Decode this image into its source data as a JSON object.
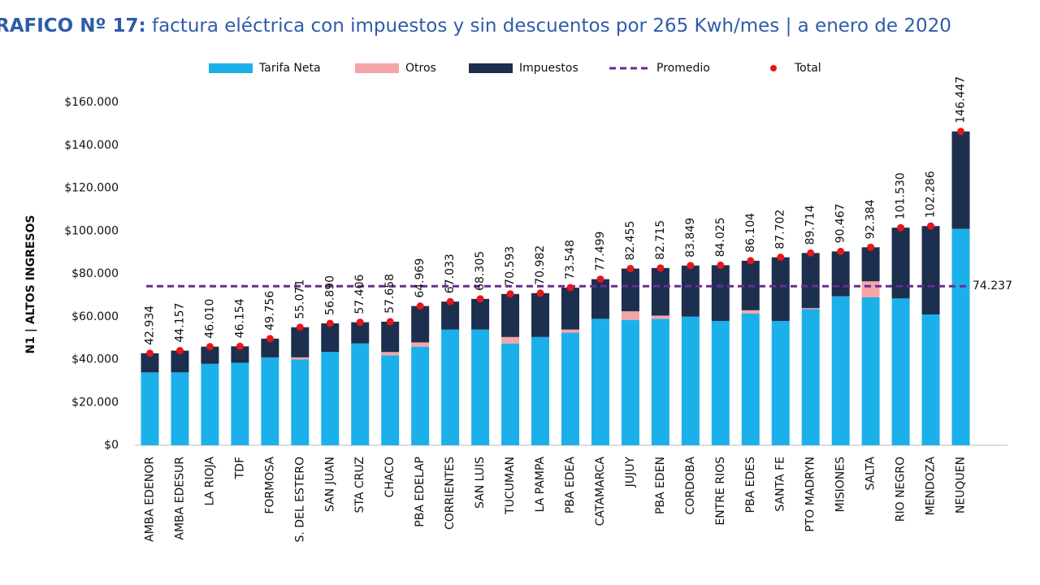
{
  "chart_data": {
    "type": "stacked-bar",
    "title": {
      "label": "RAFICO Nº 17:",
      "text": "factura eléctrica con impuestos y sin descuentos por 265 Kwh/mes | a enero de 2020"
    },
    "y_label": "N1 | ALTOS INGRESOS",
    "categories": [
      "AMBA EDENOR",
      "AMBA EDESUR",
      "LA RIOJA",
      "TDF",
      "FORMOSA",
      "S. DEL ESTERO",
      "SAN JUAN",
      "STA CRUZ",
      "CHACO",
      "PBA EDELAP",
      "CORRIENTES",
      "SAN LUIS",
      "TUCUMAN",
      "LA PAMPA",
      "PBA EDEA",
      "CATAMARCA",
      "JUJUY",
      "PBA EDEN",
      "CORDOBA",
      "ENTRE RIOS",
      "PBA EDES",
      "SANTA FE",
      "PTO MADRYN",
      "MISIONES",
      "SALTA",
      "RIO NEGRO",
      "MENDOZA",
      "NEUQUEN"
    ],
    "series": [
      {
        "name": "Tarifa Neta",
        "color": "#1cb0ea",
        "values": [
          34000,
          34000,
          38000,
          38500,
          41000,
          40000,
          43500,
          47500,
          42000,
          46000,
          54000,
          54000,
          47500,
          50500,
          52500,
          59000,
          58500,
          59000,
          60000,
          58000,
          61500,
          58000,
          63500,
          69500,
          69000,
          68500,
          61000,
          101000
        ]
      },
      {
        "name": "Otros",
        "color": "#f4a5a8",
        "values": [
          0,
          0,
          0,
          0,
          0,
          1000,
          0,
          0,
          1500,
          2000,
          0,
          0,
          3000,
          0,
          1500,
          0,
          4000,
          1500,
          0,
          0,
          1500,
          0,
          500,
          0,
          7500,
          0,
          0,
          0
        ]
      },
      {
        "name": "Impuestos",
        "color": "#1d2f4f",
        "values": [
          8934,
          10157,
          8010,
          7654,
          8756,
          14071,
          13390,
          9906,
          14158,
          16969,
          13033,
          14305,
          20093,
          20482,
          19548,
          18499,
          19955,
          22215,
          23849,
          26025,
          23104,
          29702,
          25714,
          20967,
          15884,
          33030,
          41286,
          45447
        ]
      }
    ],
    "average": {
      "name": "Promedio",
      "color": "#6a2c91",
      "value": 74237,
      "value_label": "74.237"
    },
    "total": {
      "name": "Total",
      "color": "#e8151b",
      "values": [
        42934,
        44157,
        46010,
        46154,
        49756,
        55071,
        56890,
        57406,
        57658,
        64969,
        67033,
        68305,
        70593,
        70982,
        73548,
        77499,
        82455,
        82715,
        83849,
        84025,
        86104,
        87702,
        89714,
        90467,
        92384,
        101530,
        102286,
        146447
      ],
      "value_labels": [
        "42.934",
        "44.157",
        "46.010",
        "46.154",
        "49.756",
        "55.071",
        "56.890",
        "57.406",
        "57.658",
        "64.969",
        "67.033",
        "68.305",
        "70.593",
        "70.982",
        "73.548",
        "77.499",
        "82.455",
        "82.715",
        "83.849",
        "84.025",
        "86.104",
        "87.702",
        "89.714",
        "90.467",
        "92.384",
        "101.530",
        "102.286",
        "146.447"
      ]
    },
    "ylim": [
      0,
      160000
    ],
    "yticks": [
      {
        "value": 0,
        "label": "$0"
      },
      {
        "value": 20000,
        "label": "$20.000"
      },
      {
        "value": 40000,
        "label": "$40.000"
      },
      {
        "value": 60000,
        "label": "$60.000"
      },
      {
        "value": 80000,
        "label": "$80.000"
      },
      {
        "value": 100000,
        "label": "$100.000"
      },
      {
        "value": 120000,
        "label": "$120.000"
      },
      {
        "value": 140000,
        "label": "$140.000"
      },
      {
        "value": 160000,
        "label": "$160.000"
      }
    ]
  }
}
